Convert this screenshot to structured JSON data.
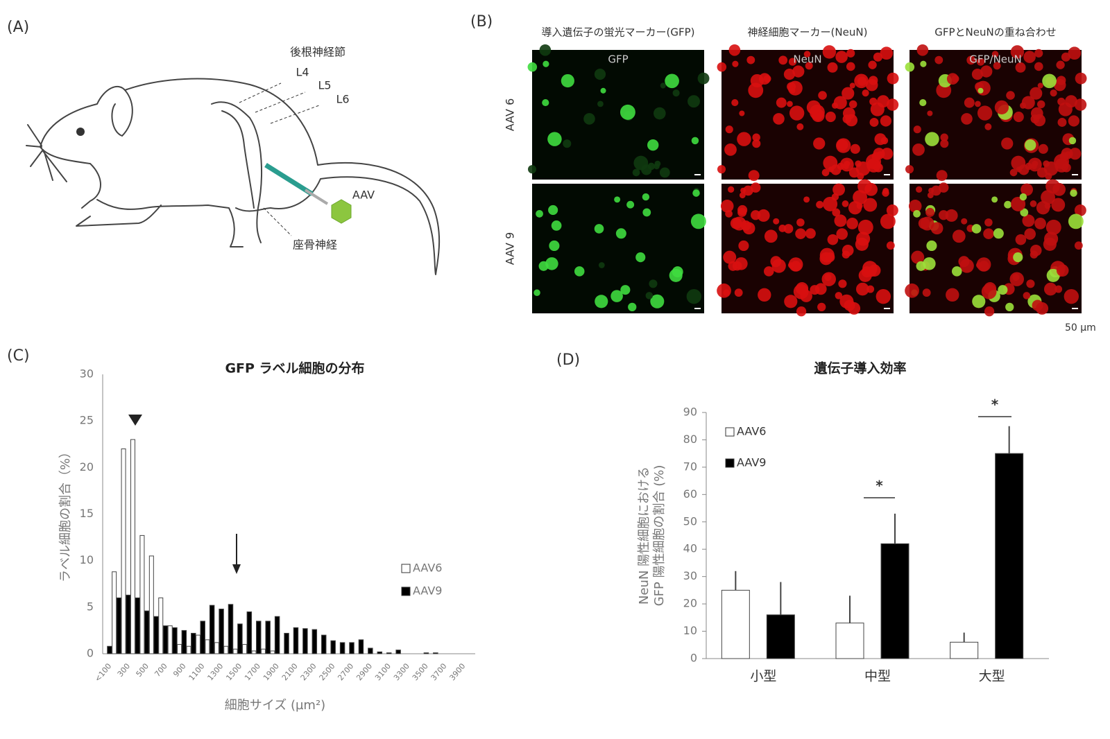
{
  "panels": {
    "a": {
      "label": "(A)",
      "drg": "後根神経節",
      "l4": "L4",
      "l5": "L5",
      "l6": "L6",
      "aav": "AAV",
      "sciatic": "座骨神経"
    },
    "b": {
      "label": "(B)",
      "columns": [
        "導入遺伝子の蛍光マーカー(GFP)",
        "神経細胞マーカー(NeuN)",
        "GFPとNeuNの重ね合わせ"
      ],
      "image_labels": [
        "GFP",
        "NeuN",
        "GFP/NeuN"
      ],
      "rows": [
        "AAV 6",
        "AAV 9"
      ],
      "scale": "50 µm"
    },
    "c": {
      "label": "(C)"
    },
    "d": {
      "label": "(D)"
    }
  },
  "chart_data": [
    {
      "type": "bar",
      "title": "GFP ラベル細胞の分布",
      "xlabel": "細胞サイズ (µm²)",
      "ylabel": "ラベル細胞の割合（%）",
      "categories": [
        "<100",
        null,
        "300",
        null,
        "500",
        null,
        "700",
        null,
        "900",
        null,
        "1100",
        null,
        "1300",
        null,
        "1500",
        null,
        "1700",
        null,
        "1900",
        null,
        "2100",
        null,
        "2300",
        null,
        "2500",
        null,
        "2700",
        null,
        "2900",
        null,
        "3100",
        null,
        "3300",
        null,
        "3500",
        null,
        "3700",
        null,
        "3900",
        null
      ],
      "series": [
        {
          "name": "AAV6",
          "color": "#ffffff",
          "values": [
            0,
            8.8,
            22,
            23,
            12.7,
            10.5,
            6,
            3,
            1,
            0.8,
            2,
            1.5,
            1.2,
            0.8,
            0.5,
            1,
            0.3,
            0.5,
            0.3,
            0,
            0,
            0,
            0,
            0,
            0,
            0,
            0,
            0,
            0,
            0,
            0,
            0,
            0,
            0,
            0,
            0,
            0,
            0,
            0,
            0
          ]
        },
        {
          "name": "AAV9",
          "color": "#000000",
          "values": [
            0.8,
            6,
            6.3,
            6,
            4.6,
            4,
            3,
            2.8,
            2.5,
            2.2,
            3.5,
            5.2,
            4.8,
            5.3,
            3.2,
            4.5,
            3.5,
            3.5,
            4,
            2.2,
            2.8,
            2.7,
            2.6,
            2,
            1.4,
            1.2,
            1.2,
            1.5,
            0.6,
            0.2,
            0.1,
            0.4,
            0,
            0,
            0.1,
            0.1,
            0,
            0,
            0,
            0
          ]
        }
      ],
      "ylim": [
        0,
        30
      ],
      "yticks": [
        0,
        5,
        10,
        15,
        20,
        25,
        30
      ]
    },
    {
      "type": "bar",
      "title": "遺伝子導入効率",
      "ylabel": [
        "NeuN 陽性細胞における",
        "GFP 陽性細胞の割合 (%)"
      ],
      "categories": [
        "小型",
        "中型",
        "大型"
      ],
      "series": [
        {
          "name": "AAV6",
          "color": "#ffffff",
          "values": [
            25,
            13,
            6
          ],
          "errors": [
            7,
            10,
            3.5
          ]
        },
        {
          "name": "AAV9",
          "color": "#000000",
          "values": [
            16,
            42,
            75
          ],
          "errors": [
            12,
            11,
            10
          ]
        }
      ],
      "ylim": [
        0,
        90
      ],
      "yticks": [
        0,
        10,
        20,
        30,
        40,
        50,
        60,
        70,
        80,
        90
      ],
      "annotations": [
        "*",
        "*"
      ]
    }
  ]
}
